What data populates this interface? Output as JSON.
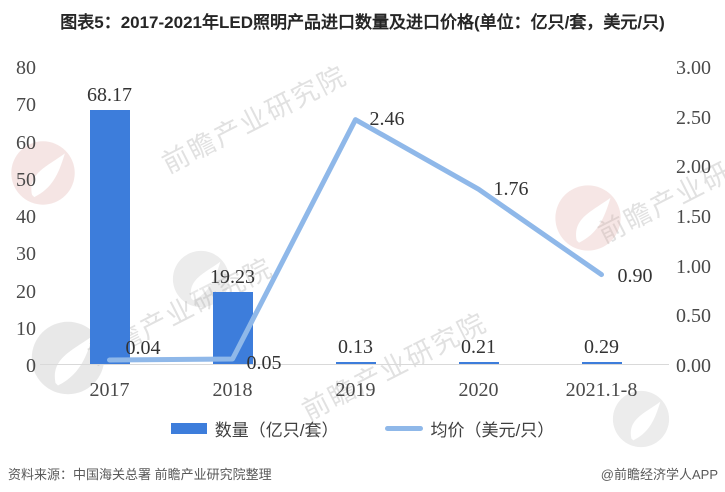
{
  "chart_data": {
    "type": "bar",
    "subtype": "combo-bar-line-dual-axis",
    "title": "图表5：2017-2021年LED照明产品进口数量及进口价格(单位：亿只/套，美元/只)",
    "categories": [
      "2017",
      "2018",
      "2019",
      "2020",
      "2021.1-8"
    ],
    "series": [
      {
        "name": "数量（亿只/套）",
        "type": "bar",
        "axis": "left",
        "color": "#3D7DDB",
        "values": [
          68.17,
          19.23,
          0.13,
          0.21,
          0.29
        ],
        "labels": [
          "68.17",
          "19.23",
          "0.13",
          "0.21",
          "0.29"
        ]
      },
      {
        "name": "均价（美元/只）",
        "type": "line",
        "axis": "right",
        "color": "#8FB8E9",
        "values": [
          0.04,
          0.05,
          2.46,
          1.76,
          0.9
        ],
        "labels": [
          "0.04",
          "0.05",
          "2.46",
          "1.76",
          "0.90"
        ]
      }
    ],
    "axes": {
      "left": {
        "min": 0,
        "max": 80,
        "ticks": [
          "80",
          "70",
          "60",
          "50",
          "40",
          "30",
          "20",
          "10",
          "0"
        ]
      },
      "right": {
        "min": 0,
        "max": 3,
        "ticks": [
          "3.00",
          "2.50",
          "2.00",
          "1.50",
          "1.00",
          "0.50",
          "0.00"
        ]
      }
    },
    "grid": false,
    "legend_position": "bottom",
    "xlabel": "",
    "ylabel_left": "亿只/套",
    "ylabel_right": "美元/只"
  },
  "legend": {
    "items": [
      {
        "label": "数量（亿只/套）",
        "swatch": "bar-swatch",
        "color": "#3D7DDB"
      },
      {
        "label": "均价（美元/只）",
        "swatch": "line-swatch",
        "color": "#8FB8E9"
      }
    ]
  },
  "footer": {
    "source": "资料来源：中国海关总署 前瞻产业研究院整理",
    "credit": "@前瞻经济学人APP"
  },
  "watermark": {
    "text": "前瞻产业研究院",
    "gray_color": "#afafaf",
    "red_color": "#e2b0ac"
  }
}
